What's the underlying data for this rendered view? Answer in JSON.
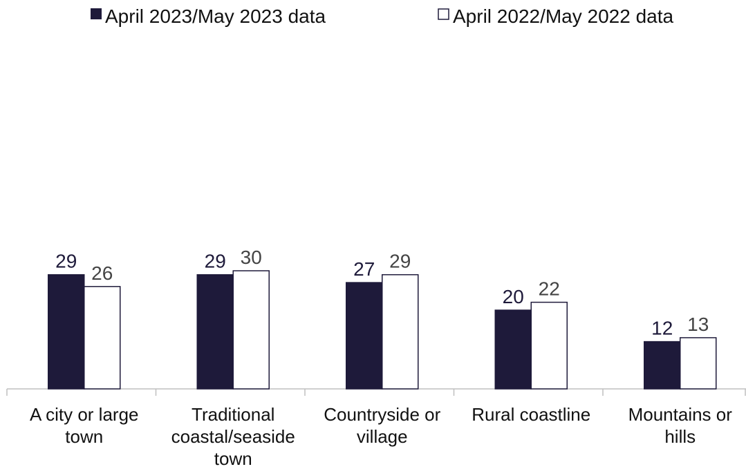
{
  "chart_data": {
    "type": "bar",
    "categories": [
      [
        "A city or large",
        "town"
      ],
      [
        "Traditional",
        "coastal/seaside",
        "town"
      ],
      [
        "Countryside or",
        "village"
      ],
      [
        "Rural coastline"
      ],
      [
        "Mountains or",
        "hills"
      ]
    ],
    "series": [
      {
        "name": "April 2023/May 2023 data",
        "values": [
          29,
          29,
          27,
          20,
          12
        ],
        "color": "#1e1a3a",
        "fill": "#1e1a3a",
        "label_color": "#1e1a3a"
      },
      {
        "name": "April 2022/May 2022 data",
        "values": [
          26,
          30,
          29,
          22,
          13
        ],
        "color": "#1e1a3a",
        "fill": "#ffffff",
        "label_color": "#444444"
      }
    ],
    "title": "",
    "xlabel": "",
    "ylabel": "",
    "ylim": [
      0,
      60
    ],
    "grid": false,
    "legend_position": "top"
  }
}
